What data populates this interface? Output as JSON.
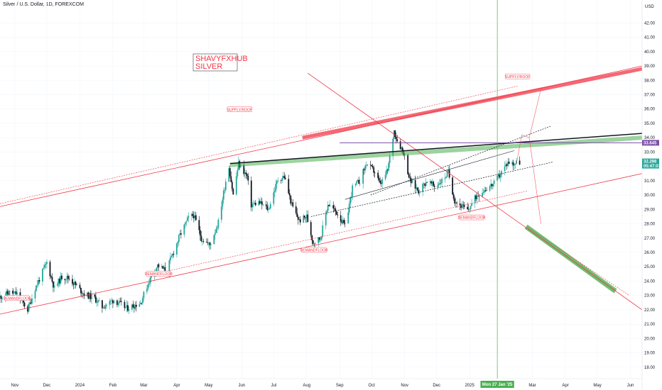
{
  "header": {
    "symbol": "Silver / U.S. Dollar, 1D, FOREXCOM",
    "currency": "USD"
  },
  "brand": {
    "line1": "SHAVYFXHUB",
    "line2": "SILVER"
  },
  "annotations": [
    {
      "text": "SUPPLY/ROOF",
      "x": "2024-05-30",
      "y": 35.95
    },
    {
      "text": "SUPPLY/ROOF",
      "x": "2025-02-15",
      "y": 38.25
    },
    {
      "text": "DEMANDFLOOR",
      "x": "2023-11-03",
      "y": 22.8
    },
    {
      "text": "DEMANDFLOOR",
      "x": "2024-03-15",
      "y": 24.5
    },
    {
      "text": "DEMANDFLOOR",
      "x": "2024-08-08",
      "y": 26.15
    },
    {
      "text": "DEMANDFLOOR",
      "x": "2025-01-03",
      "y": 28.42
    }
  ],
  "price_tags": {
    "horizontal_level": {
      "value": "33.645",
      "color": "#7b4fa6"
    },
    "last_price": {
      "value": "32.298",
      "time": "05:47:01",
      "color": "#26a69a"
    }
  },
  "crosshair": {
    "label": "Mon 27 Jan '25",
    "color": "#4caf50"
  },
  "chart_data": {
    "type": "candlestick",
    "symbol": "Silver / U.S. Dollar",
    "interval": "1D",
    "ylim": [
      17.2,
      43.6
    ],
    "xlim": [
      "2023-10-18",
      "2025-06-12"
    ],
    "x_ticks": [
      {
        "label": "Nov",
        "date": "2023-11-01"
      },
      {
        "label": "Dec",
        "date": "2023-12-01"
      },
      {
        "label": "2024",
        "date": "2024-01-01"
      },
      {
        "label": "Feb",
        "date": "2024-02-01"
      },
      {
        "label": "Mar",
        "date": "2024-03-01"
      },
      {
        "label": "Apr",
        "date": "2024-04-01"
      },
      {
        "label": "May",
        "date": "2024-05-01"
      },
      {
        "label": "Jun",
        "date": "2024-06-01"
      },
      {
        "label": "Jul",
        "date": "2024-07-01"
      },
      {
        "label": "Aug",
        "date": "2024-08-01"
      },
      {
        "label": "Sep",
        "date": "2024-09-01"
      },
      {
        "label": "Oct",
        "date": "2024-10-01"
      },
      {
        "label": "Nov",
        "date": "2024-11-01"
      },
      {
        "label": "Dec",
        "date": "2024-12-01"
      },
      {
        "label": "2025",
        "date": "2025-01-01"
      },
      {
        "label": "Mar",
        "date": "2025-03-01"
      },
      {
        "label": "Apr",
        "date": "2025-04-01"
      },
      {
        "label": "May",
        "date": "2025-05-01"
      },
      {
        "label": "Jun",
        "date": "2025-06-01"
      }
    ],
    "y_ticks": [
      18,
      19,
      20,
      21,
      22,
      23,
      24,
      25,
      26,
      27,
      28,
      29,
      30,
      31,
      32,
      33,
      34,
      35,
      36,
      37,
      38,
      39,
      40,
      41,
      42
    ],
    "price_path": [
      [
        "2023-10-18",
        22.9
      ],
      [
        "2023-10-27",
        23.2
      ],
      [
        "2023-11-03",
        23.1
      ],
      [
        "2023-11-13",
        22.0
      ],
      [
        "2023-11-20",
        23.5
      ],
      [
        "2023-12-01",
        25.3
      ],
      [
        "2023-12-08",
        23.5
      ],
      [
        "2023-12-15",
        24.3
      ],
      [
        "2023-12-22",
        24.2
      ],
      [
        "2024-01-05",
        23.1
      ],
      [
        "2024-01-15",
        22.8
      ],
      [
        "2024-01-22",
        22.2
      ],
      [
        "2024-02-02",
        22.7
      ],
      [
        "2024-02-14",
        22.1
      ],
      [
        "2024-02-27",
        22.5
      ],
      [
        "2024-03-06",
        24.0
      ],
      [
        "2024-03-14",
        25.1
      ],
      [
        "2024-03-22",
        24.7
      ],
      [
        "2024-04-04",
        27.2
      ],
      [
        "2024-04-12",
        28.4
      ],
      [
        "2024-04-17",
        28.6
      ],
      [
        "2024-04-24",
        27.0
      ],
      [
        "2024-05-02",
        26.5
      ],
      [
        "2024-05-10",
        28.1
      ],
      [
        "2024-05-17",
        31.0
      ],
      [
        "2024-05-20",
        32.0
      ],
      [
        "2024-05-24",
        30.0
      ],
      [
        "2024-05-29",
        32.2
      ],
      [
        "2024-06-06",
        31.3
      ],
      [
        "2024-06-10",
        29.3
      ],
      [
        "2024-06-17",
        29.5
      ],
      [
        "2024-06-26",
        29.0
      ],
      [
        "2024-07-05",
        31.1
      ],
      [
        "2024-07-11",
        31.3
      ],
      [
        "2024-07-18",
        29.3
      ],
      [
        "2024-07-25",
        28.2
      ],
      [
        "2024-08-01",
        28.5
      ],
      [
        "2024-08-07",
        26.7
      ],
      [
        "2024-08-14",
        27.0
      ],
      [
        "2024-08-21",
        29.4
      ],
      [
        "2024-08-30",
        28.7
      ],
      [
        "2024-09-06",
        27.8
      ],
      [
        "2024-09-13",
        30.5
      ],
      [
        "2024-09-20",
        31.0
      ],
      [
        "2024-09-26",
        32.2
      ],
      [
        "2024-10-04",
        31.6
      ],
      [
        "2024-10-09",
        30.7
      ],
      [
        "2024-10-16",
        31.7
      ],
      [
        "2024-10-22",
        34.5
      ],
      [
        "2024-10-25",
        33.8
      ],
      [
        "2024-10-31",
        33.0
      ],
      [
        "2024-11-06",
        31.0
      ],
      [
        "2024-11-14",
        30.3
      ],
      [
        "2024-11-22",
        31.0
      ],
      [
        "2024-11-29",
        30.6
      ],
      [
        "2024-12-06",
        31.0
      ],
      [
        "2024-12-12",
        31.6
      ],
      [
        "2024-12-18",
        29.6
      ],
      [
        "2024-12-30",
        28.9
      ],
      [
        "2025-01-08",
        30.0
      ],
      [
        "2025-01-15",
        30.4
      ],
      [
        "2025-01-24",
        30.8
      ],
      [
        "2025-01-31",
        31.6
      ],
      [
        "2025-02-06",
        32.3
      ],
      [
        "2025-02-11",
        32.2
      ],
      [
        "2025-02-17",
        32.3
      ]
    ],
    "lines": [
      {
        "name": "",
        "style": "upper-channel",
        "color": "#f23645",
        "from": [
          "2023-10-18",
          29.2
        ],
        "to": [
          "2025-06-12",
          39.0
        ]
      },
      {
        "name": "",
        "style": "upper-channel-dashed",
        "color": "#f23645",
        "from": [
          "2023-10-18",
          29.4
        ],
        "to": [
          "2025-02-15",
          37.6
        ]
      },
      {
        "name": "",
        "style": "lower-channel",
        "color": "#f23645",
        "from": [
          "2023-10-18",
          21.7
        ],
        "to": [
          "2025-06-12",
          31.5
        ]
      },
      {
        "name": "",
        "style": "lower-channel-dashed",
        "color": "#f23645",
        "from": [
          "2024-03-11",
          24.5
        ],
        "to": [
          "2025-02-25",
          30.3
        ]
      },
      {
        "name": "",
        "style": "falling-trend",
        "color": "#f23645",
        "from": [
          "2024-08-02",
          38.5
        ],
        "to": [
          "2025-06-12",
          22.0
        ]
      },
      {
        "name": "",
        "style": "falling-trend-dashed",
        "color": "#f23645",
        "from": [
          "2025-02-25",
          27.7
        ],
        "to": [
          "2025-05-31",
          23.0
        ]
      },
      {
        "name": "",
        "style": "resistance-black",
        "color": "#131722",
        "from": [
          "2024-05-21",
          32.2
        ],
        "to": [
          "2025-06-12",
          34.3
        ]
      },
      {
        "name": "",
        "style": "channel-mid-upper",
        "color": "#131722",
        "from": [
          "2024-09-30",
          30.0
        ],
        "to": [
          "2025-03-18",
          34.8
        ]
      },
      {
        "name": "",
        "style": "channel-mid-lower",
        "color": "#131722",
        "from": [
          "2024-08-05",
          28.5
        ],
        "to": [
          "2025-03-20",
          32.3
        ]
      },
      {
        "name": "",
        "style": "channel-inner",
        "color": "#131722",
        "from": [
          "2024-09-06",
          29.7
        ],
        "to": [
          "2025-02-12",
          33.1
        ]
      }
    ],
    "level": {
      "value": 33.645,
      "color": "#7b4fa6",
      "from": "2024-09-01",
      "to": "2025-06-12"
    },
    "bands": [
      {
        "style": "thick-red",
        "color": "#f23645",
        "from": [
          "2024-07-28",
          34.0
        ],
        "to": [
          "2025-06-12",
          38.8
        ]
      },
      {
        "style": "green-top",
        "color": "#4caf50",
        "from": [
          "2024-05-21",
          32.1
        ],
        "to": [
          "2025-06-12",
          34.0
        ]
      },
      {
        "style": "green-projection",
        "color": "#4caf50",
        "from": [
          "2025-02-23",
          27.8
        ],
        "to": [
          "2025-05-18",
          23.3
        ]
      }
    ],
    "projection": [
      [
        "2025-02-14",
        32.2
      ],
      [
        "2025-02-19",
        34.2
      ],
      [
        "2025-02-26",
        34.0
      ],
      [
        "2025-03-09",
        37.4
      ],
      [
        "2025-02-26",
        34.0
      ],
      [
        "2025-03-09",
        28.0
      ]
    ],
    "crosshair_date": "2025-01-27"
  }
}
